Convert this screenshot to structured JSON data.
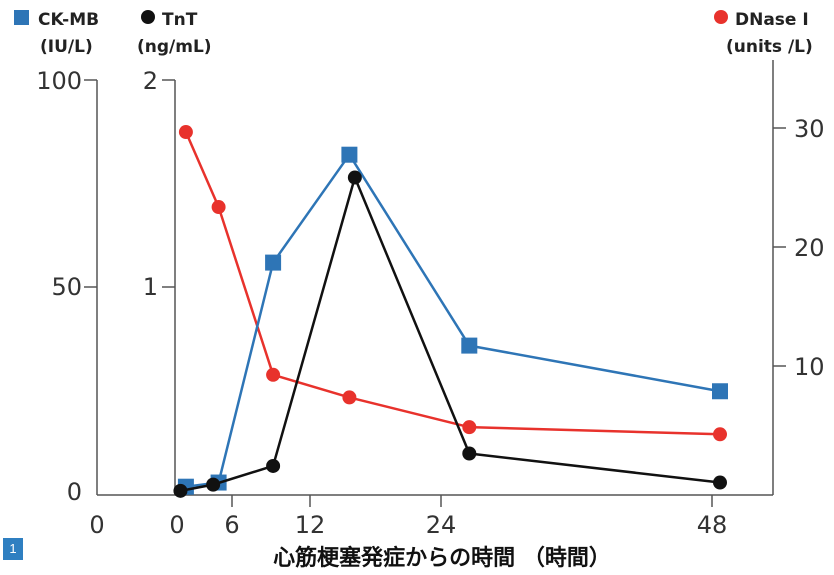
{
  "figure_number": "1",
  "colors": {
    "ckmb": "#2e75b6",
    "tnt": "#111111",
    "dnase": "#e8322c",
    "axis": "#555555"
  },
  "chart_data": {
    "type": "line",
    "xlabel": "心筋梗塞発症からの時間 （時間）",
    "x_ticks": [
      "0",
      "0",
      "6",
      "12",
      "24",
      "48"
    ],
    "axes": {
      "ckmb": {
        "header": "CK-MB",
        "unit": "(IU/L)",
        "ticks": [
          "0",
          "50",
          "100"
        ],
        "ylim": [
          0,
          100
        ]
      },
      "tnt": {
        "header": "TnT",
        "unit": "(ng/mL)",
        "ticks": [
          "1",
          "2"
        ],
        "ylim": [
          0,
          2
        ]
      },
      "dnase": {
        "header": "DNase I",
        "unit": "(units /L)",
        "ticks": [
          "10",
          "20",
          "30"
        ],
        "ylim": [
          0,
          35
        ]
      }
    },
    "series": [
      {
        "name": "CK-MB",
        "axis": "ckmb",
        "marker": "square",
        "x": [
          1,
          4,
          9,
          16,
          27,
          50
        ],
        "y": [
          2,
          3,
          56,
          82,
          36,
          25
        ]
      },
      {
        "name": "TnT",
        "axis": "tnt",
        "marker": "circle",
        "x": [
          0.5,
          3.5,
          9,
          16.5,
          27,
          50
        ],
        "y": [
          0.02,
          0.05,
          0.14,
          1.53,
          0.2,
          0.06
        ]
      },
      {
        "name": "DNase I",
        "axis": "dnase",
        "marker": "circle",
        "x": [
          1,
          4,
          9,
          16,
          27,
          50
        ],
        "y": [
          30.5,
          24.2,
          10.1,
          8.2,
          5.7,
          5.1
        ]
      }
    ]
  }
}
